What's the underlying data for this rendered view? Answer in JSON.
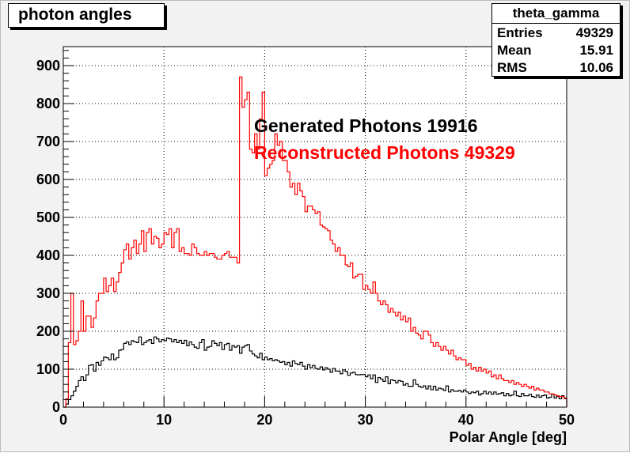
{
  "canvas_title": "photon angles",
  "stats": {
    "name": "theta_gamma",
    "rows": [
      {
        "label": "Entries",
        "value": "49329"
      },
      {
        "label": "Mean",
        "value": "15.91"
      },
      {
        "label": "RMS",
        "value": "10.06"
      }
    ]
  },
  "annotations": [
    {
      "text": "Generated Photons 19916",
      "color": "#000000"
    },
    {
      "text": "Reconstructed Photons 49329",
      "color": "#ff0000"
    }
  ],
  "chart_data": {
    "type": "histogram",
    "xlabel": "Polar Angle [deg]",
    "ylabel": "",
    "xlim": [
      0,
      50
    ],
    "ylim": [
      0,
      950
    ],
    "bin_width": 0.25,
    "xticks": [
      "0",
      "10",
      "20",
      "30",
      "40",
      "50"
    ],
    "yticks": [
      "0",
      "100",
      "200",
      "300",
      "400",
      "500",
      "600",
      "700",
      "800",
      "900"
    ],
    "grid": true,
    "series": [
      {
        "name": "Generated Photons 19916",
        "color": "#000000",
        "values": [
          0,
          8,
          20,
          30,
          42,
          55,
          70,
          80,
          70,
          85,
          110,
          112,
          95,
          118,
          110,
          122,
          132,
          130,
          125,
          140,
          125,
          130,
          150,
          152,
          168,
          172,
          165,
          175,
          172,
          170,
          185,
          165,
          170,
          175,
          178,
          168,
          185,
          180,
          172,
          178,
          175,
          182,
          180,
          172,
          178,
          170,
          176,
          168,
          176,
          162,
          172,
          165,
          158,
          155,
          170,
          178,
          150,
          158,
          160,
          175,
          168,
          162,
          170,
          152,
          165,
          168,
          150,
          162,
          158,
          162,
          142,
          158,
          162,
          165,
          148,
          140,
          135,
          130,
          142,
          125,
          132,
          125,
          128,
          122,
          125,
          122,
          118,
          120,
          112,
          118,
          108,
          122,
          115,
          112,
          118,
          108,
          100,
          112,
          104,
          110,
          102,
          100,
          106,
          98,
          104,
          100,
          92,
          102,
          95,
          95,
          88,
          98,
          94,
          84,
          90,
          92,
          86,
          85,
          86,
          86,
          80,
          85,
          75,
          85,
          65,
          78,
          74,
          68,
          80,
          62,
          72,
          70,
          64,
          70,
          68,
          58,
          62,
          55,
          55,
          72,
          60,
          55,
          52,
          56,
          48,
          56,
          46,
          55,
          45,
          50,
          48,
          44,
          56,
          40,
          46,
          42,
          42,
          44,
          40,
          45,
          40,
          36,
          40,
          38,
          42,
          32,
          36,
          42,
          35,
          40,
          34,
          40,
          34,
          36,
          38,
          30,
          36,
          30,
          32,
          42,
          30,
          28,
          36,
          30,
          30,
          34,
          28,
          26,
          32,
          26,
          30,
          32,
          24,
          26,
          34,
          24,
          28,
          22,
          30,
          24
        ]
      },
      {
        "name": "Reconstructed Photons 49329",
        "color": "#ff0000",
        "values": [
          0,
          22,
          170,
          300,
          165,
          175,
          200,
          280,
          200,
          240,
          240,
          210,
          235,
          280,
          300,
          300,
          340,
          305,
          320,
          340,
          305,
          330,
          355,
          380,
          415,
          430,
          390,
          420,
          440,
          405,
          430,
          465,
          410,
          460,
          470,
          430,
          450,
          445,
          420,
          430,
          460,
          455,
          470,
          420,
          460,
          470,
          410,
          420,
          405,
          405,
          400,
          430,
          420,
          405,
          400,
          400,
          410,
          400,
          405,
          405,
          395,
          390,
          390,
          400,
          405,
          410,
          395,
          395,
          395,
          380,
          870,
          790,
          810,
          830,
          680,
          670,
          720,
          680,
          760,
          830,
          610,
          630,
          640,
          650,
          720,
          690,
          700,
          650,
          650,
          620,
          580,
          590,
          560,
          590,
          570,
          555,
          515,
          530,
          530,
          520,
          510,
          515,
          480,
          475,
          470,
          465,
          440,
          430,
          410,
          420,
          400,
          400,
          375,
          370,
          380,
          340,
          345,
          350,
          350,
          310,
          320,
          310,
          300,
          330,
          300,
          280,
          270,
          280,
          270,
          250,
          260,
          250,
          240,
          250,
          230,
          240,
          225,
          235,
          200,
          210,
          195,
          190,
          180,
          200,
          200,
          190,
          170,
          160,
          170,
          160,
          150,
          160,
          150,
          140,
          150,
          135,
          125,
          130,
          125,
          125,
          110,
          115,
          100,
          105,
          95,
          105,
          95,
          100,
          90,
          95,
          80,
          85,
          75,
          85,
          75,
          70,
          70,
          65,
          70,
          60,
          65,
          60,
          55,
          60,
          55,
          50,
          55,
          45,
          50,
          45,
          45,
          40,
          40,
          35,
          35,
          32,
          30,
          28,
          28,
          22
        ]
      }
    ]
  }
}
